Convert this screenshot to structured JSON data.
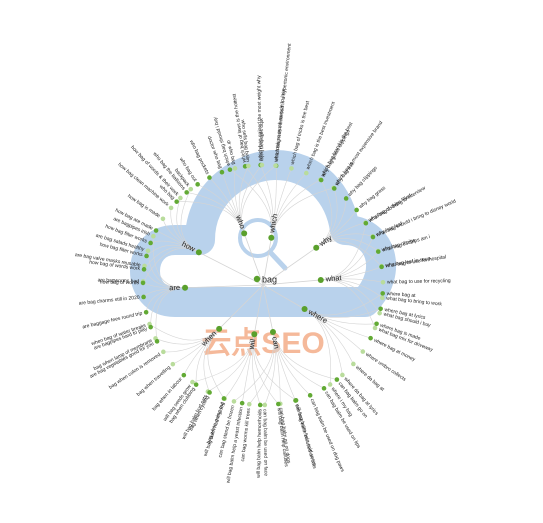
{
  "watermark": {
    "text": "云点SEO",
    "cloud_color": "#b9d2ec",
    "text_color": "#f5b99a"
  },
  "colors": {
    "center_node": "#5aa02c",
    "branch_node": "#5aa02c",
    "leaf_dark": "#62aa34",
    "leaf_light": "#b9dc9c",
    "link": "#d4d4d4",
    "text": "#222222"
  },
  "center": {
    "label": "bag"
  },
  "branches": [
    {
      "label": "which",
      "leaves": [
        "which bag should i buy",
        "which bag of laws is the hottest",
        "which bag gained the most weight why",
        "which bag was immersed in a hypertonic environment",
        "which bag of tricks is the best",
        "which bag is the best investment",
        "which bag brand is the best",
        "which bag is most expensive brand"
      ]
    },
    {
      "label": "why",
      "leaves": [
        "why bag grass clippings",
        "why bag milk",
        "why bag clippings",
        "why bag grass",
        "why bag of chips filled",
        "why bag leaf",
        "why bag of pigs",
        "why bag leaf in soup"
      ]
    },
    {
      "label": "what",
      "leaves": [
        "what bag to bring to interview",
        "what bag should i bring to disney world",
        "what bag of chips am i",
        "what bag to use for hospital",
        "what bag to use for recycling",
        "what bag to bring to work",
        "what bag should i buy",
        "what bag mix for driveway"
      ]
    },
    {
      "label": "where",
      "leaves": [
        "where bag at",
        "where bag at lyrics",
        "where bag is made",
        "where bag at money",
        "where umbro collects",
        "where da bag at",
        "where da bag at lyrics",
        "where i my bag"
      ]
    },
    {
      "label": "can",
      "leaves": [
        "can bag balm go on",
        "can bag balm be used on lips",
        "can bag balm be used on dog paws",
        "can bag balm be used on cats",
        "can bag balm go on dogs",
        "can bag balm be used on face",
        "can bag worms kill trees",
        "can bag stand be frozen"
      ]
    },
    {
      "label": "will",
      "leaves": [
        "will bag balm help cold sores",
        "will bag balm help calluses",
        "will bag balm help hemorrhoids",
        "will bag balm help a yeast infection",
        "will bag balm hurt my dog",
        "will bag balm hurt cats",
        "will bag seeds grow"
      ]
    },
    {
      "label": "when",
      "leaves": [
        "bag when going out",
        "bag when cycling",
        "bag when clubbing",
        "bag when in labour",
        "bag when travelling",
        "bag when colon is removed",
        "bag when lamp of membrane",
        "when bag of water breaks"
      ]
    },
    {
      "label": "are",
      "leaves": [
        "are bag vegetables good for you",
        "are bagpipes hard to play",
        "are baggage fees round trip",
        "are bag charms still in 2020",
        "are bagworms bad",
        "are bag valve masks reusable",
        "are bag salads healthy",
        "are bagpipes irish"
      ]
    },
    {
      "label": "how",
      "leaves": [
        "how bag of words",
        "how bag of words work",
        "how bag filter works",
        "how bag filter works",
        "how bag are made",
        "how bag is made",
        "how bag clean machine work",
        "how bag of words & their work",
        "backpack"
      ]
    },
    {
      "label": "who",
      "leaves": [
        "who bag",
        "who bag the balloons",
        "who bag out",
        "who bag pockets",
        "doctor who bag",
        "dr who bag",
        "who sells bag balm",
        "who sells bag balm",
        "who took so much muscle to lose"
      ]
    }
  ]
}
